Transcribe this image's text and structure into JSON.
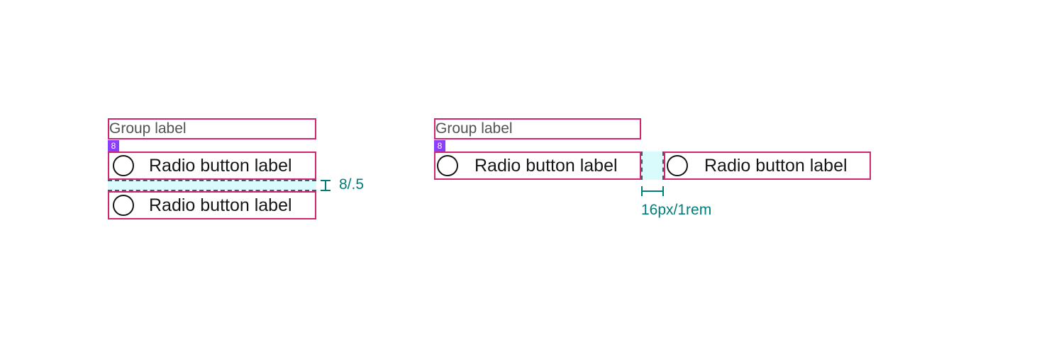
{
  "vertical_example": {
    "group_label": "Group label",
    "spacing_badge": "8",
    "options": [
      {
        "label": "Radio button label"
      },
      {
        "label": "Radio button label"
      }
    ],
    "gap_measurement": "8/.5"
  },
  "horizontal_example": {
    "group_label": "Group label",
    "spacing_badge": "8",
    "options": [
      {
        "label": "Radio button label"
      },
      {
        "label": "Radio button label"
      }
    ],
    "gap_measurement": "16px/1rem"
  },
  "colors": {
    "redline": "#d02670",
    "badge": "#8a3ffc",
    "spacer_fill": "#d9fbfb",
    "measurement": "#007d79",
    "text": "#161616",
    "label": "#525252"
  }
}
